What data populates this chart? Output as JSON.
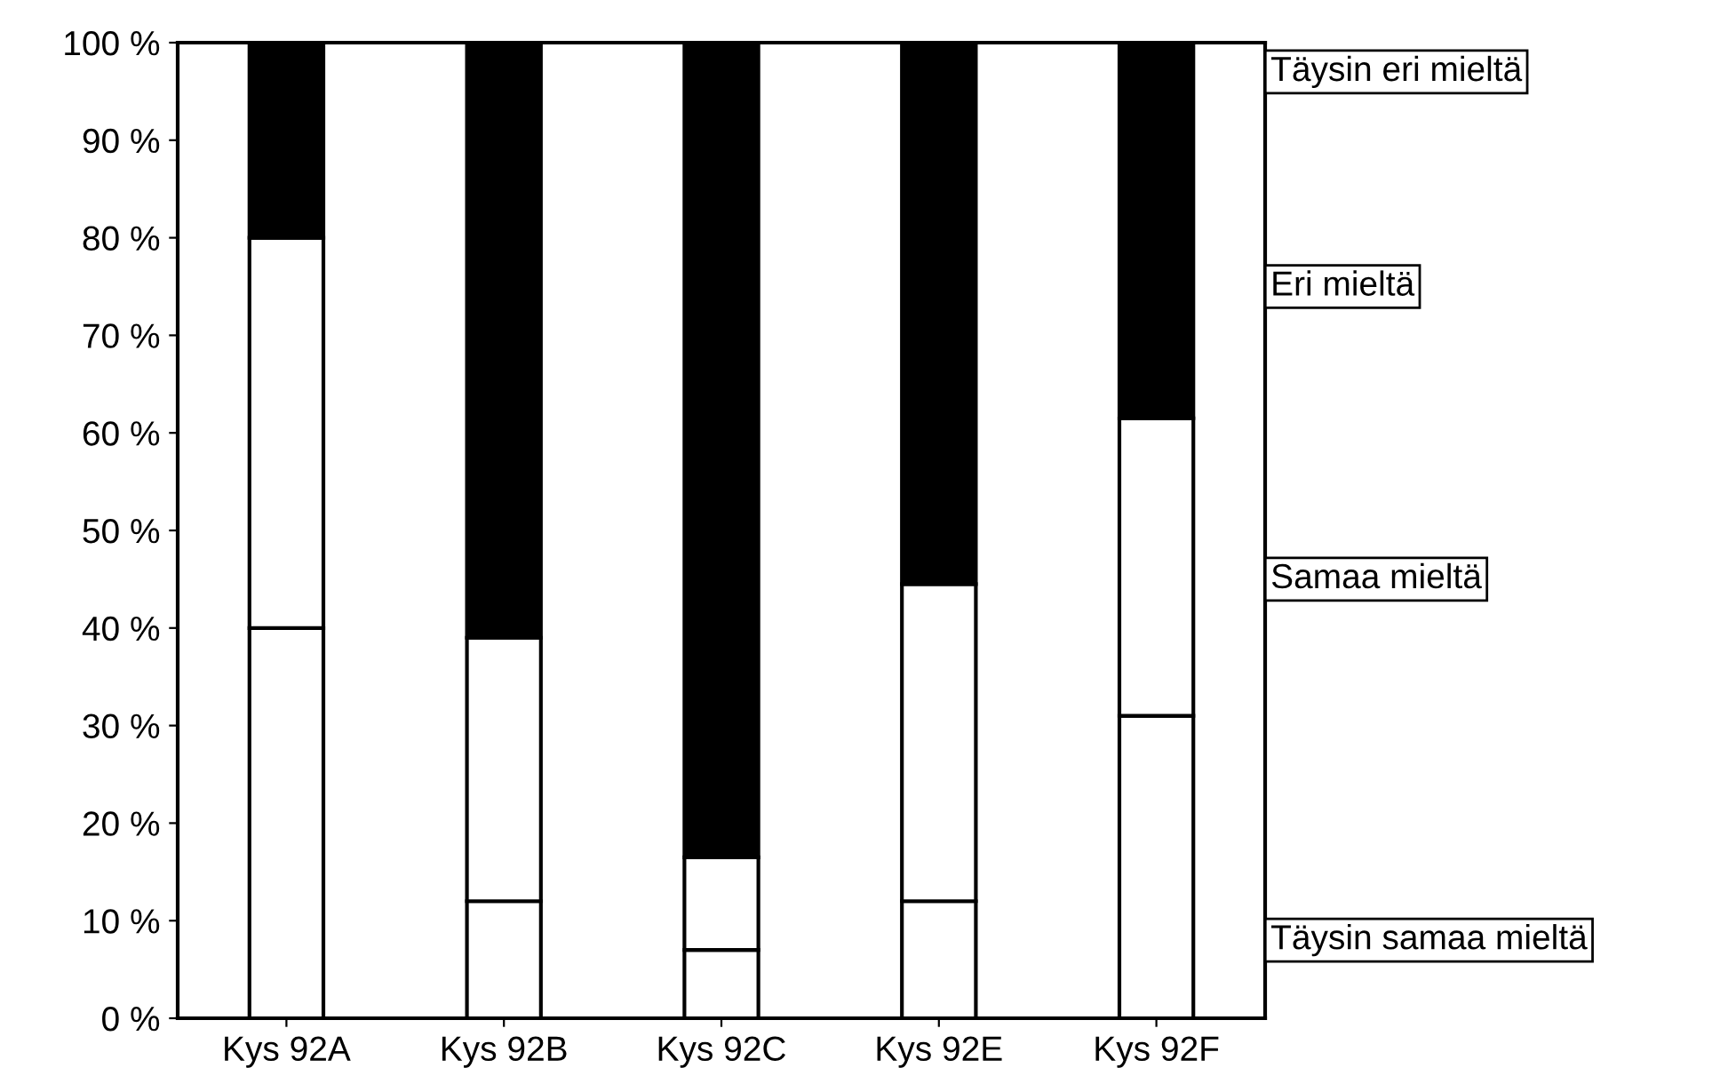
{
  "chart_data": {
    "type": "bar",
    "stacked": true,
    "categories": [
      "Kys 92A",
      "Kys 92B",
      "Kys 92C",
      "Kys 92E",
      "Kys 92F"
    ],
    "series": [
      {
        "name": "Täysin samaa mieltä",
        "color": "#ffffff",
        "values": [
          40,
          12,
          7,
          12,
          31
        ]
      },
      {
        "name": "Samaa mieltä",
        "color": "#ffffff",
        "values": [
          40,
          27,
          9.5,
          32.5,
          30.5
        ]
      },
      {
        "name": "Eri mieltä",
        "color": "#000000",
        "values": [
          20,
          61,
          83.5,
          55.5,
          38.5
        ]
      },
      {
        "name": "Täysin eri mieltä",
        "values": [
          null,
          null,
          null,
          null,
          null
        ]
      }
    ],
    "ylim": [
      0,
      100
    ],
    "yticks": [
      {
        "value": 0,
        "label": "0 %"
      },
      {
        "value": 10,
        "label": "10 %"
      },
      {
        "value": 20,
        "label": "20 %"
      },
      {
        "value": 30,
        "label": "30 %"
      },
      {
        "value": 40,
        "label": "40 %"
      },
      {
        "value": 50,
        "label": "50 %"
      },
      {
        "value": 60,
        "label": "60 %"
      },
      {
        "value": 70,
        "label": "70 %"
      },
      {
        "value": 80,
        "label": "80 %"
      },
      {
        "value": 90,
        "label": "90 %"
      },
      {
        "value": 100,
        "label": "100 %"
      }
    ],
    "legend": "right",
    "grid": false
  }
}
